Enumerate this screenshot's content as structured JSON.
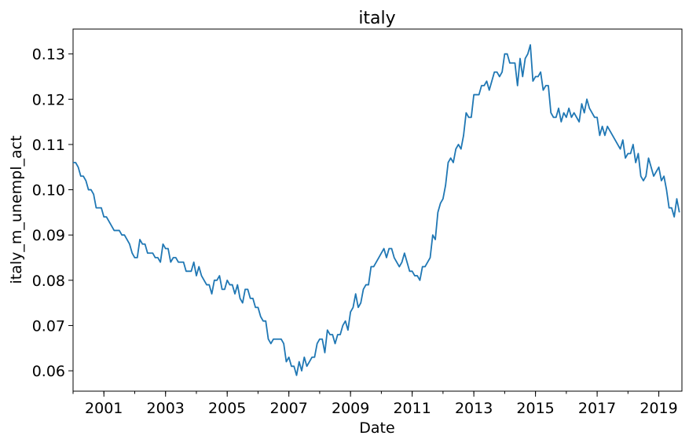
{
  "chart_data": {
    "type": "line",
    "title": "italy",
    "xlabel": "Date",
    "ylabel": "italy_m_unempl_act",
    "xlim": [
      "2000-01",
      "2019-10"
    ],
    "ylim": [
      0.0555,
      0.1355
    ],
    "x_ticks": [
      {
        "label": "2001",
        "date": "2001-01"
      },
      {
        "label": "2003",
        "date": "2003-01"
      },
      {
        "label": "2005",
        "date": "2005-01"
      },
      {
        "label": "2007",
        "date": "2007-01"
      },
      {
        "label": "2009",
        "date": "2009-01"
      },
      {
        "label": "2011",
        "date": "2011-01"
      },
      {
        "label": "2013",
        "date": "2013-01"
      },
      {
        "label": "2015",
        "date": "2015-01"
      },
      {
        "label": "2017",
        "date": "2017-01"
      },
      {
        "label": "2019",
        "date": "2019-01"
      }
    ],
    "y_ticks": [
      {
        "label": "0.06",
        "value": 0.06
      },
      {
        "label": "0.07",
        "value": 0.07
      },
      {
        "label": "0.08",
        "value": 0.08
      },
      {
        "label": "0.09",
        "value": 0.09
      },
      {
        "label": "0.10",
        "value": 0.1
      },
      {
        "label": "0.11",
        "value": 0.11
      },
      {
        "label": "0.12",
        "value": 0.12
      },
      {
        "label": "0.13",
        "value": 0.13
      }
    ],
    "grid": false,
    "series": [
      {
        "color": "#1f77b4",
        "points": [
          [
            "2000-01",
            0.106
          ],
          [
            "2000-02",
            0.106
          ],
          [
            "2000-03",
            0.105
          ],
          [
            "2000-04",
            0.103
          ],
          [
            "2000-05",
            0.103
          ],
          [
            "2000-06",
            0.102
          ],
          [
            "2000-07",
            0.1
          ],
          [
            "2000-08",
            0.1
          ],
          [
            "2000-09",
            0.099
          ],
          [
            "2000-10",
            0.096
          ],
          [
            "2000-11",
            0.096
          ],
          [
            "2000-12",
            0.096
          ],
          [
            "2001-01",
            0.094
          ],
          [
            "2001-02",
            0.094
          ],
          [
            "2001-03",
            0.093
          ],
          [
            "2001-04",
            0.092
          ],
          [
            "2001-05",
            0.091
          ],
          [
            "2001-06",
            0.091
          ],
          [
            "2001-07",
            0.091
          ],
          [
            "2001-08",
            0.09
          ],
          [
            "2001-09",
            0.09
          ],
          [
            "2001-10",
            0.089
          ],
          [
            "2001-11",
            0.088
          ],
          [
            "2001-12",
            0.086
          ],
          [
            "2002-01",
            0.085
          ],
          [
            "2002-02",
            0.085
          ],
          [
            "2002-03",
            0.089
          ],
          [
            "2002-04",
            0.088
          ],
          [
            "2002-05",
            0.088
          ],
          [
            "2002-06",
            0.086
          ],
          [
            "2002-07",
            0.086
          ],
          [
            "2002-08",
            0.086
          ],
          [
            "2002-09",
            0.085
          ],
          [
            "2002-10",
            0.085
          ],
          [
            "2002-11",
            0.084
          ],
          [
            "2002-12",
            0.088
          ],
          [
            "2003-01",
            0.087
          ],
          [
            "2003-02",
            0.087
          ],
          [
            "2003-03",
            0.084
          ],
          [
            "2003-04",
            0.085
          ],
          [
            "2003-05",
            0.085
          ],
          [
            "2003-06",
            0.084
          ],
          [
            "2003-07",
            0.084
          ],
          [
            "2003-08",
            0.084
          ],
          [
            "2003-09",
            0.082
          ],
          [
            "2003-10",
            0.082
          ],
          [
            "2003-11",
            0.082
          ],
          [
            "2003-12",
            0.084
          ],
          [
            "2004-01",
            0.081
          ],
          [
            "2004-02",
            0.083
          ],
          [
            "2004-03",
            0.081
          ],
          [
            "2004-04",
            0.08
          ],
          [
            "2004-05",
            0.079
          ],
          [
            "2004-06",
            0.079
          ],
          [
            "2004-07",
            0.077
          ],
          [
            "2004-08",
            0.08
          ],
          [
            "2004-09",
            0.08
          ],
          [
            "2004-10",
            0.081
          ],
          [
            "2004-11",
            0.078
          ],
          [
            "2004-12",
            0.078
          ],
          [
            "2005-01",
            0.08
          ],
          [
            "2005-02",
            0.079
          ],
          [
            "2005-03",
            0.079
          ],
          [
            "2005-04",
            0.077
          ],
          [
            "2005-05",
            0.079
          ],
          [
            "2005-06",
            0.076
          ],
          [
            "2005-07",
            0.075
          ],
          [
            "2005-08",
            0.078
          ],
          [
            "2005-09",
            0.078
          ],
          [
            "2005-10",
            0.076
          ],
          [
            "2005-11",
            0.076
          ],
          [
            "2005-12",
            0.074
          ],
          [
            "2006-01",
            0.074
          ],
          [
            "2006-02",
            0.072
          ],
          [
            "2006-03",
            0.071
          ],
          [
            "2006-04",
            0.071
          ],
          [
            "2006-05",
            0.067
          ],
          [
            "2006-06",
            0.066
          ],
          [
            "2006-07",
            0.067
          ],
          [
            "2006-08",
            0.067
          ],
          [
            "2006-09",
            0.067
          ],
          [
            "2006-10",
            0.067
          ],
          [
            "2006-11",
            0.066
          ],
          [
            "2006-12",
            0.062
          ],
          [
            "2007-01",
            0.063
          ],
          [
            "2007-02",
            0.061
          ],
          [
            "2007-03",
            0.061
          ],
          [
            "2007-04",
            0.059
          ],
          [
            "2007-05",
            0.062
          ],
          [
            "2007-06",
            0.06
          ],
          [
            "2007-07",
            0.063
          ],
          [
            "2007-08",
            0.061
          ],
          [
            "2007-09",
            0.062
          ],
          [
            "2007-10",
            0.063
          ],
          [
            "2007-11",
            0.063
          ],
          [
            "2007-12",
            0.066
          ],
          [
            "2008-01",
            0.067
          ],
          [
            "2008-02",
            0.067
          ],
          [
            "2008-03",
            0.064
          ],
          [
            "2008-04",
            0.069
          ],
          [
            "2008-05",
            0.068
          ],
          [
            "2008-06",
            0.068
          ],
          [
            "2008-07",
            0.066
          ],
          [
            "2008-08",
            0.068
          ],
          [
            "2008-09",
            0.068
          ],
          [
            "2008-10",
            0.07
          ],
          [
            "2008-11",
            0.071
          ],
          [
            "2008-12",
            0.069
          ],
          [
            "2009-01",
            0.073
          ],
          [
            "2009-02",
            0.074
          ],
          [
            "2009-03",
            0.077
          ],
          [
            "2009-04",
            0.074
          ],
          [
            "2009-05",
            0.075
          ],
          [
            "2009-06",
            0.078
          ],
          [
            "2009-07",
            0.079
          ],
          [
            "2009-08",
            0.079
          ],
          [
            "2009-09",
            0.083
          ],
          [
            "2009-10",
            0.083
          ],
          [
            "2009-11",
            0.084
          ],
          [
            "2009-12",
            0.085
          ],
          [
            "2010-01",
            0.086
          ],
          [
            "2010-02",
            0.087
          ],
          [
            "2010-03",
            0.085
          ],
          [
            "2010-04",
            0.087
          ],
          [
            "2010-05",
            0.087
          ],
          [
            "2010-06",
            0.085
          ],
          [
            "2010-07",
            0.084
          ],
          [
            "2010-08",
            0.083
          ],
          [
            "2010-09",
            0.084
          ],
          [
            "2010-10",
            0.086
          ],
          [
            "2010-11",
            0.084
          ],
          [
            "2010-12",
            0.082
          ],
          [
            "2011-01",
            0.082
          ],
          [
            "2011-02",
            0.081
          ],
          [
            "2011-03",
            0.081
          ],
          [
            "2011-04",
            0.08
          ],
          [
            "2011-05",
            0.083
          ],
          [
            "2011-06",
            0.083
          ],
          [
            "2011-07",
            0.084
          ],
          [
            "2011-08",
            0.085
          ],
          [
            "2011-09",
            0.09
          ],
          [
            "2011-10",
            0.089
          ],
          [
            "2011-11",
            0.095
          ],
          [
            "2011-12",
            0.097
          ],
          [
            "2012-01",
            0.098
          ],
          [
            "2012-02",
            0.101
          ],
          [
            "2012-03",
            0.106
          ],
          [
            "2012-04",
            0.107
          ],
          [
            "2012-05",
            0.106
          ],
          [
            "2012-06",
            0.109
          ],
          [
            "2012-07",
            0.11
          ],
          [
            "2012-08",
            0.109
          ],
          [
            "2012-09",
            0.112
          ],
          [
            "2012-10",
            0.117
          ],
          [
            "2012-11",
            0.116
          ],
          [
            "2012-12",
            0.116
          ],
          [
            "2013-01",
            0.121
          ],
          [
            "2013-02",
            0.121
          ],
          [
            "2013-03",
            0.121
          ],
          [
            "2013-04",
            0.123
          ],
          [
            "2013-05",
            0.123
          ],
          [
            "2013-06",
            0.124
          ],
          [
            "2013-07",
            0.122
          ],
          [
            "2013-08",
            0.124
          ],
          [
            "2013-09",
            0.126
          ],
          [
            "2013-10",
            0.126
          ],
          [
            "2013-11",
            0.125
          ],
          [
            "2013-12",
            0.126
          ],
          [
            "2014-01",
            0.13
          ],
          [
            "2014-02",
            0.13
          ],
          [
            "2014-03",
            0.128
          ],
          [
            "2014-04",
            0.128
          ],
          [
            "2014-05",
            0.128
          ],
          [
            "2014-06",
            0.123
          ],
          [
            "2014-07",
            0.129
          ],
          [
            "2014-08",
            0.125
          ],
          [
            "2014-09",
            0.129
          ],
          [
            "2014-10",
            0.13
          ],
          [
            "2014-11",
            0.132
          ],
          [
            "2014-12",
            0.124
          ],
          [
            "2015-01",
            0.125
          ],
          [
            "2015-02",
            0.125
          ],
          [
            "2015-03",
            0.126
          ],
          [
            "2015-04",
            0.122
          ],
          [
            "2015-05",
            0.123
          ],
          [
            "2015-06",
            0.123
          ],
          [
            "2015-07",
            0.117
          ],
          [
            "2015-08",
            0.116
          ],
          [
            "2015-09",
            0.116
          ],
          [
            "2015-10",
            0.118
          ],
          [
            "2015-11",
            0.115
          ],
          [
            "2015-12",
            0.117
          ],
          [
            "2016-01",
            0.116
          ],
          [
            "2016-02",
            0.118
          ],
          [
            "2016-03",
            0.116
          ],
          [
            "2016-04",
            0.117
          ],
          [
            "2016-05",
            0.116
          ],
          [
            "2016-06",
            0.115
          ],
          [
            "2016-07",
            0.119
          ],
          [
            "2016-08",
            0.117
          ],
          [
            "2016-09",
            0.12
          ],
          [
            "2016-10",
            0.118
          ],
          [
            "2016-11",
            0.117
          ],
          [
            "2016-12",
            0.116
          ],
          [
            "2017-01",
            0.116
          ],
          [
            "2017-02",
            0.112
          ],
          [
            "2017-03",
            0.114
          ],
          [
            "2017-04",
            0.112
          ],
          [
            "2017-05",
            0.114
          ],
          [
            "2017-06",
            0.113
          ],
          [
            "2017-07",
            0.112
          ],
          [
            "2017-08",
            0.111
          ],
          [
            "2017-09",
            0.11
          ],
          [
            "2017-10",
            0.109
          ],
          [
            "2017-11",
            0.111
          ],
          [
            "2017-12",
            0.107
          ],
          [
            "2018-01",
            0.108
          ],
          [
            "2018-02",
            0.108
          ],
          [
            "2018-03",
            0.11
          ],
          [
            "2018-04",
            0.106
          ],
          [
            "2018-05",
            0.108
          ],
          [
            "2018-06",
            0.103
          ],
          [
            "2018-07",
            0.102
          ],
          [
            "2018-08",
            0.103
          ],
          [
            "2018-09",
            0.107
          ],
          [
            "2018-10",
            0.105
          ],
          [
            "2018-11",
            0.103
          ],
          [
            "2018-12",
            0.104
          ],
          [
            "2019-01",
            0.105
          ],
          [
            "2019-02",
            0.102
          ],
          [
            "2019-03",
            0.103
          ],
          [
            "2019-04",
            0.1
          ],
          [
            "2019-05",
            0.096
          ],
          [
            "2019-06",
            0.096
          ],
          [
            "2019-07",
            0.094
          ],
          [
            "2019-08",
            0.098
          ],
          [
            "2019-09",
            0.095
          ]
        ]
      }
    ]
  }
}
